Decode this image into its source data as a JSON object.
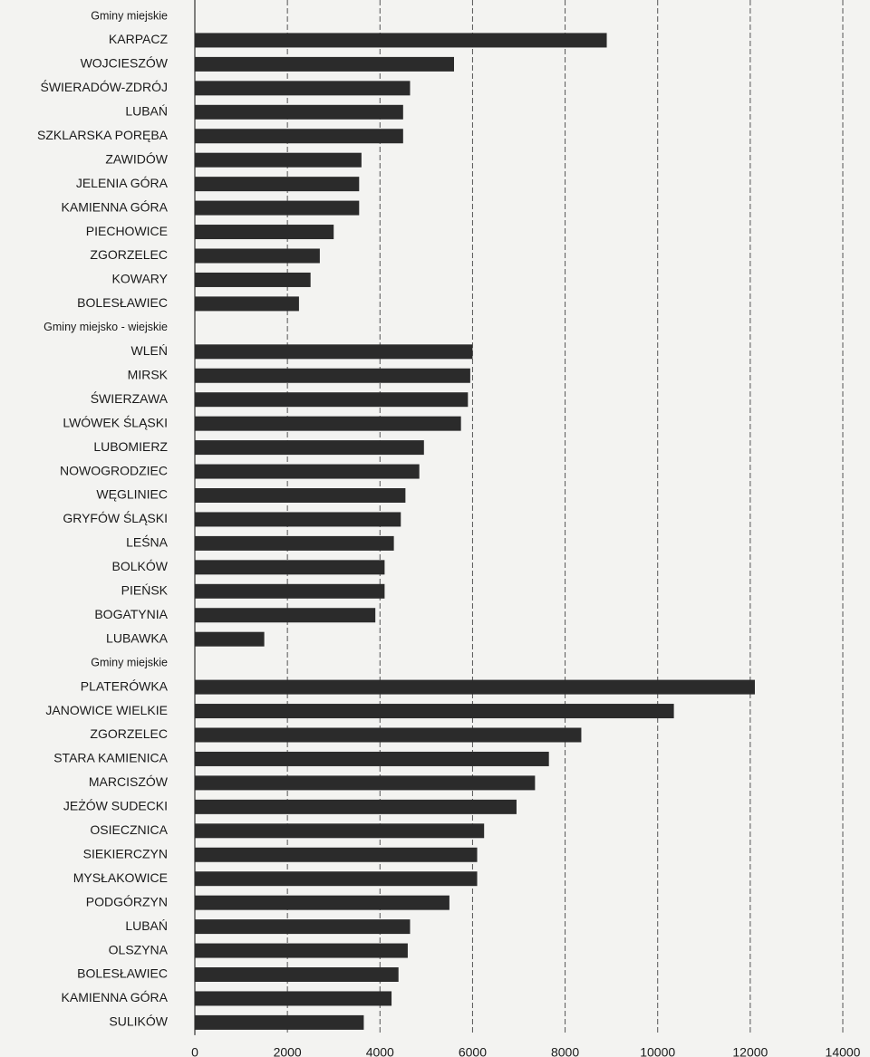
{
  "chart_data": {
    "type": "bar",
    "orientation": "horizontal",
    "categories": [
      "Gminy miejskie",
      "KARPACZ",
      "WOJCIESZÓW",
      "ŚWIERADÓW-ZDRÓJ",
      "LUBAŃ",
      "SZKLARSKA PORĘBA",
      "ZAWIDÓW",
      "JELENIA GÓRA",
      "KAMIENNA GÓRA",
      "PIECHOWICE",
      "ZGORZELEC",
      "KOWARY",
      "BOLESŁAWIEC",
      "Gminy miejsko - wiejskie",
      "WLEŃ",
      "MIRSK",
      "ŚWIERZAWA",
      "LWÓWEK ŚLĄSKI",
      "LUBOMIERZ",
      "NOWOGRODZIEC",
      "WĘGLINIEC",
      "GRYFÓW ŚLĄSKI",
      "LEŚNA",
      "BOLKÓW",
      "PIEŃSK",
      "BOGATYNIA",
      "LUBAWKA",
      "Gminy miejskie",
      "PLATERÓWKA",
      "JANOWICE WIELKIE",
      "ZGORZELEC",
      "STARA KAMIENICA",
      "MARCISZÓW",
      "JEŻÓW SUDECKI",
      "OSIECZNICA",
      "SIEKIERCZYN",
      "MYSŁAKOWICE",
      "PODGÓRZYN",
      "LUBAŃ",
      "OLSZYNA",
      "BOLESŁAWIEC",
      "KAMIENNA GÓRA",
      "SULIKÓW"
    ],
    "values": [
      null,
      8900,
      5600,
      4650,
      4500,
      4500,
      3600,
      3550,
      3550,
      3000,
      2700,
      2500,
      2250,
      null,
      6000,
      5950,
      5900,
      5750,
      4950,
      4850,
      4550,
      4450,
      4300,
      4100,
      4100,
      3900,
      1500,
      null,
      12100,
      10350,
      8350,
      7650,
      7350,
      6950,
      6250,
      6100,
      6100,
      5500,
      4650,
      4600,
      4400,
      4250,
      3650
    ],
    "color": "#2b2b2b",
    "xlim": [
      0,
      14000
    ],
    "xticks": [
      0,
      2000,
      4000,
      6000,
      8000,
      10000,
      12000,
      14000
    ],
    "grid": true
  }
}
